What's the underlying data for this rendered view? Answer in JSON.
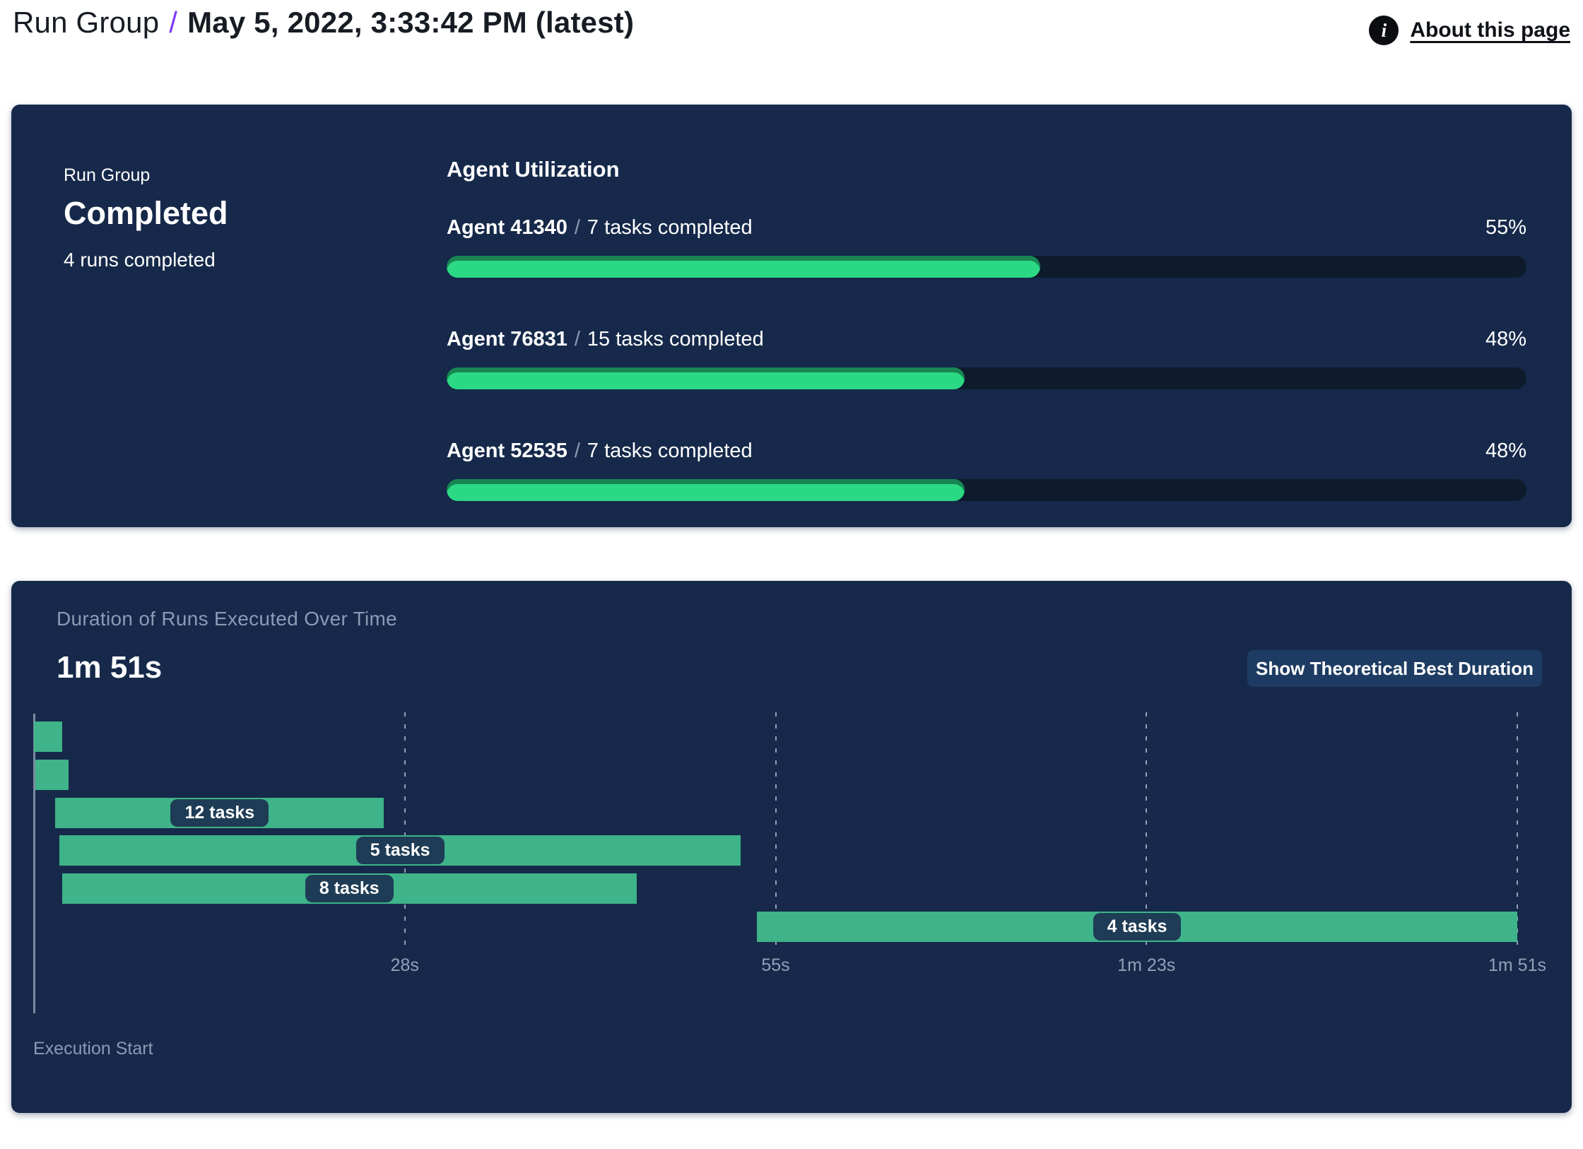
{
  "header": {
    "breadcrumb": "Run Group",
    "separator": "/",
    "title": "May 5, 2022, 3:33:42 PM (latest)",
    "about_link": "About this page",
    "info_icon_glyph": "i"
  },
  "colors": {
    "panel_bg": "#16294a",
    "accent_purple": "#7b3bf4",
    "progress_fill_green": "#2bd985",
    "progress_track": "#0d1b2c",
    "gantt_bar_green": "#3fb389",
    "label_pill_navy": "#1e3c55",
    "muted_text": "#8c9bb5",
    "button_bg": "#1e3c63"
  },
  "status_panel": {
    "label": "Run Group",
    "status": "Completed",
    "runs_completed": "4 runs completed",
    "utilization": {
      "heading": "Agent Utilization",
      "separator": "/",
      "agents": [
        {
          "name": "Agent 41340",
          "tasks": "7 tasks completed",
          "percent": 55,
          "percent_label": "55%"
        },
        {
          "name": "Agent 76831",
          "tasks": "15 tasks completed",
          "percent": 48,
          "percent_label": "48%"
        },
        {
          "name": "Agent 52535",
          "tasks": "7 tasks completed",
          "percent": 48,
          "percent_label": "48%"
        }
      ]
    }
  },
  "duration_panel": {
    "title": "Duration of Runs Executed Over Time",
    "total_duration": "1m 51s",
    "button_label": "Show Theoretical Best Duration",
    "execution_start_label": "Execution Start"
  },
  "chart_data": {
    "type": "bar",
    "subtype": "gantt-waterfall",
    "title": "Duration of Runs Executed Over Time",
    "total_duration_label": "1m 51s",
    "xlabel": "Execution Start",
    "xlim_seconds": [
      0,
      111
    ],
    "grid": "dashed-vertical",
    "ticks": [
      {
        "label": "28s",
        "t": 27.75
      },
      {
        "label": "55s",
        "t": 55.5
      },
      {
        "label": "1m 23s",
        "t": 83.25
      },
      {
        "label": "1m 51s",
        "t": 111
      }
    ],
    "runs": [
      {
        "label": "",
        "start_s": 0.0,
        "end_s": 2.1
      },
      {
        "label": "",
        "start_s": 0.1,
        "end_s": 2.6
      },
      {
        "label": "12 tasks",
        "start_s": 1.6,
        "end_s": 26.2
      },
      {
        "label": "5 tasks",
        "start_s": 1.9,
        "end_s": 52.9
      },
      {
        "label": "8 tasks",
        "start_s": 2.1,
        "end_s": 45.1
      },
      {
        "label": "4 tasks",
        "start_s": 54.1,
        "end_s": 111.0
      }
    ]
  }
}
